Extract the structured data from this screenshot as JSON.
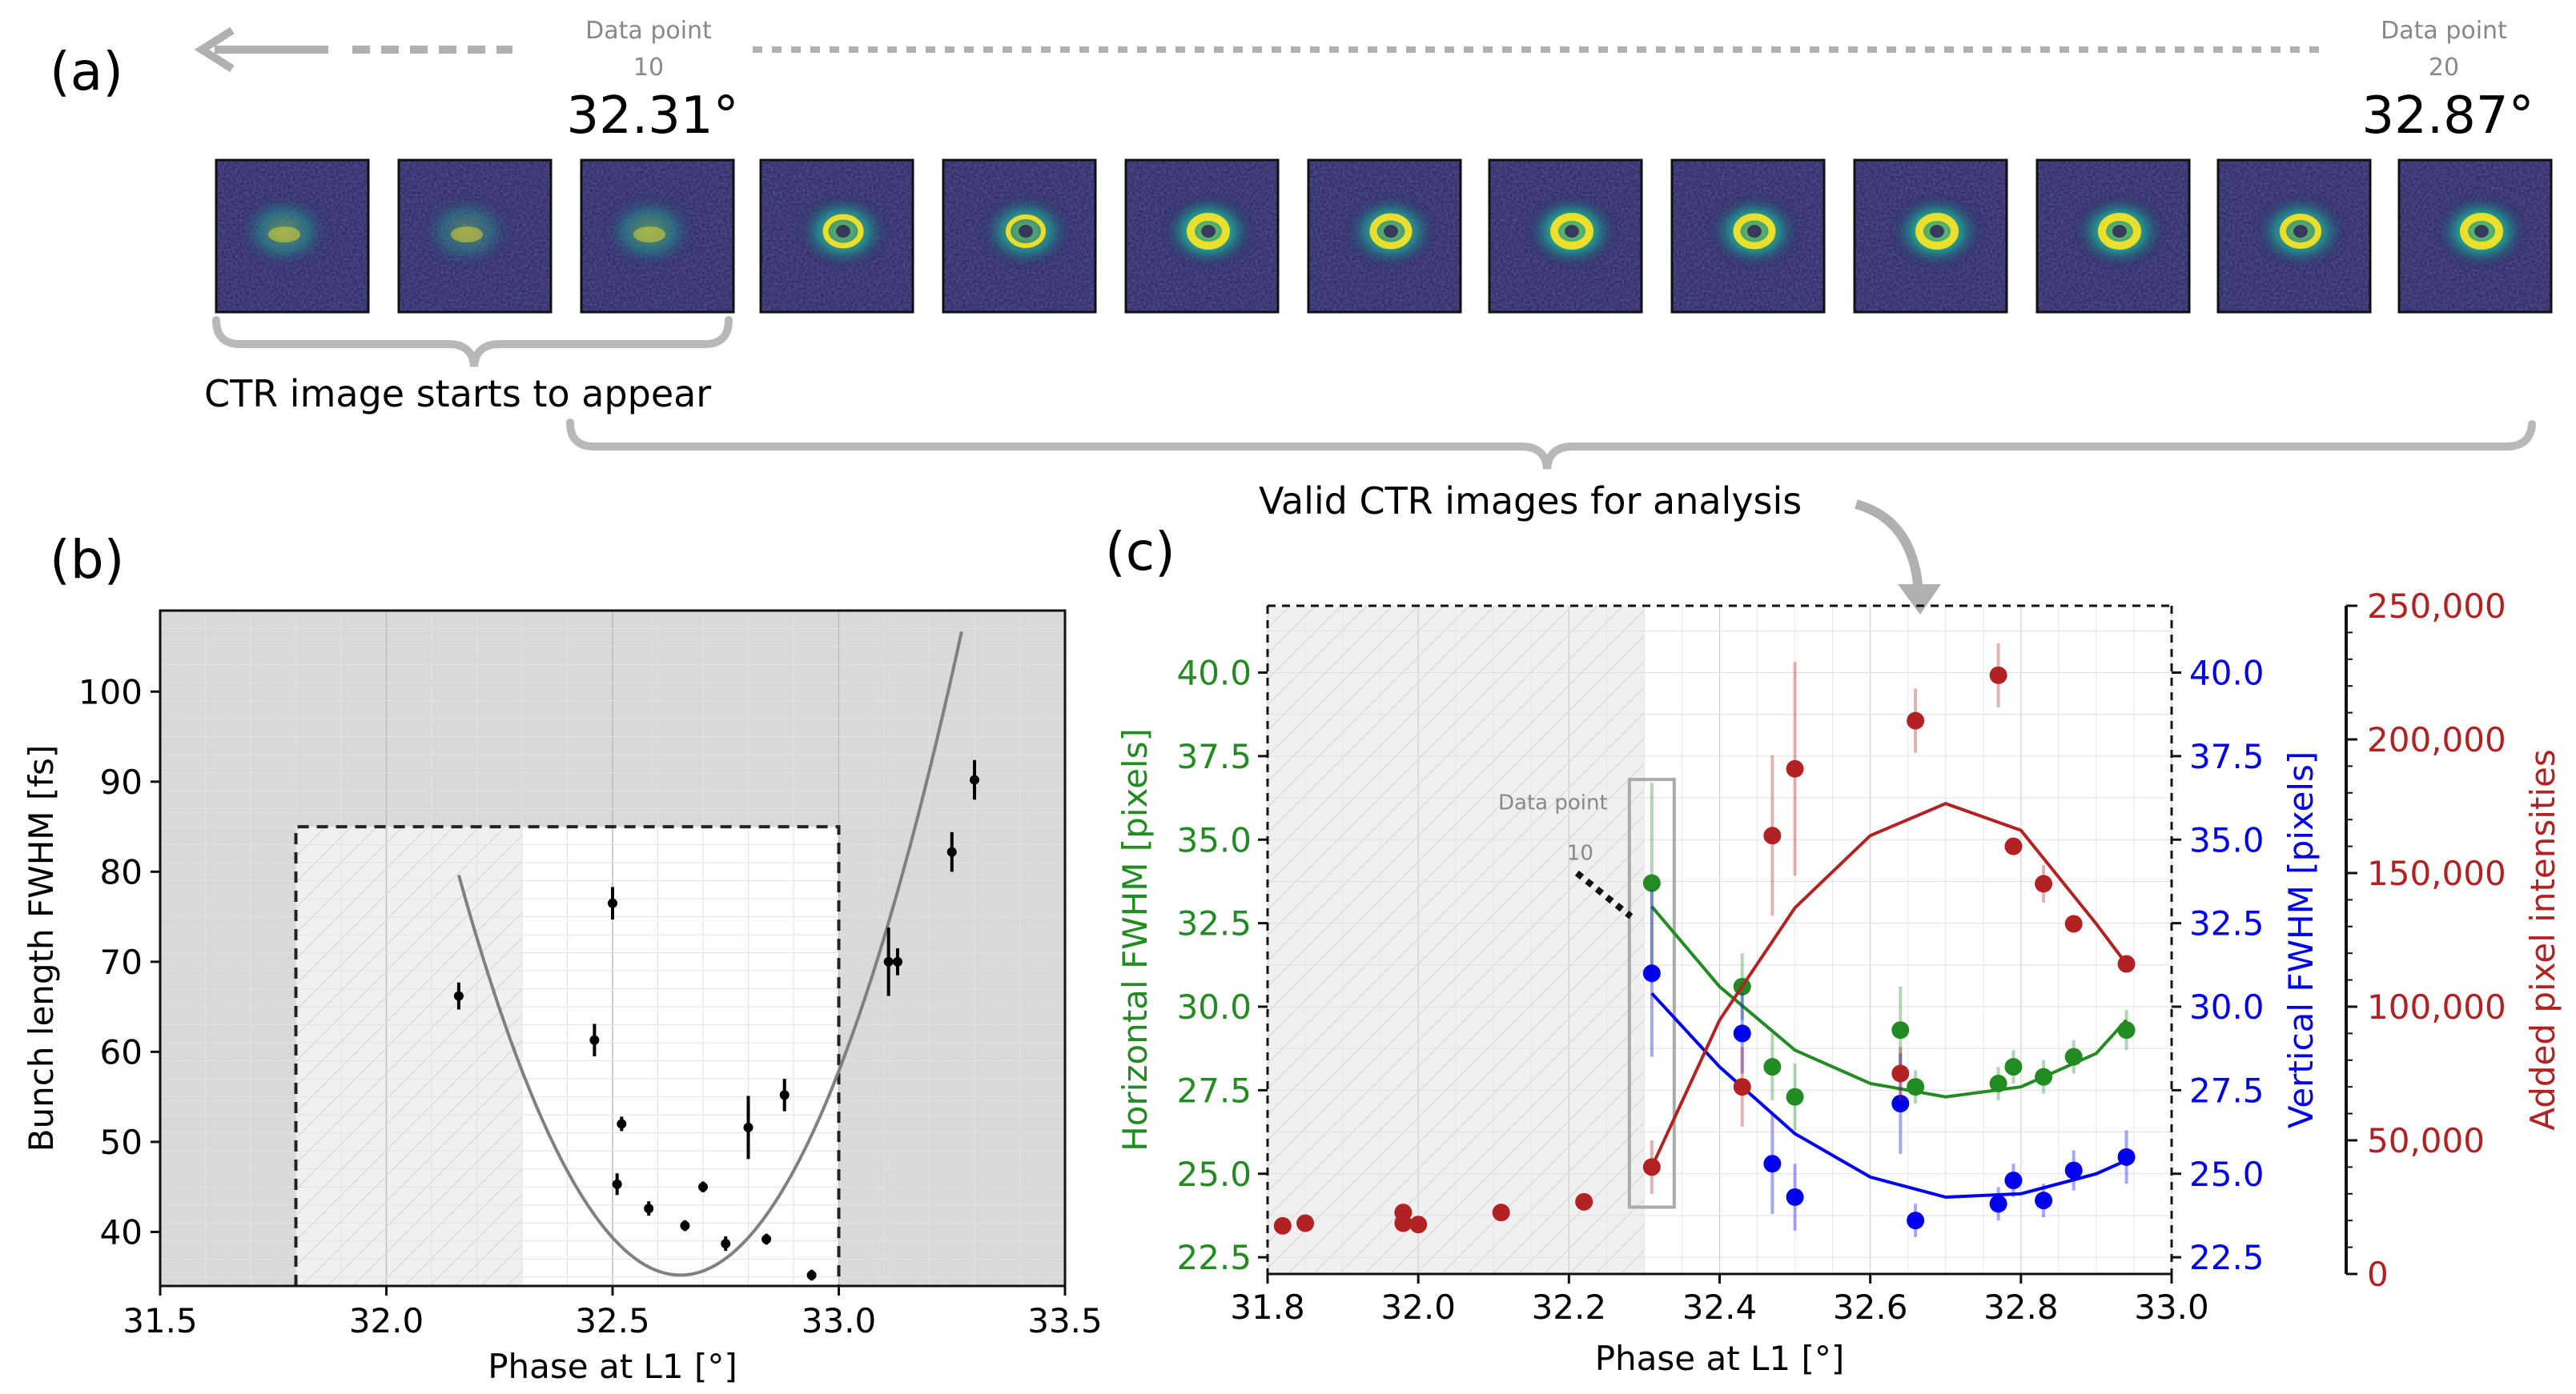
{
  "panel_a": {
    "label": "(a)",
    "dp10": {
      "label": "Data point",
      "num": "10",
      "angle": "32.31°"
    },
    "dp20": {
      "label": "Data point",
      "num": "20",
      "angle": "32.87°"
    },
    "brace_label_appear": "CTR image starts to appear",
    "brace_label_valid": "Valid CTR images for analysis",
    "thumbnails": [
      {
        "ring": 0.0,
        "bright": 0.55
      },
      {
        "ring": 0.0,
        "bright": 0.45
      },
      {
        "ring": 0.1,
        "bright": 0.55
      },
      {
        "ring": 0.7,
        "bright": 0.85
      },
      {
        "ring": 0.6,
        "bright": 0.8
      },
      {
        "ring": 1.0,
        "bright": 0.95
      },
      {
        "ring": 0.9,
        "bright": 0.85
      },
      {
        "ring": 1.0,
        "bright": 0.95
      },
      {
        "ring": 0.9,
        "bright": 0.9
      },
      {
        "ring": 1.0,
        "bright": 0.95
      },
      {
        "ring": 1.0,
        "bright": 0.92
      },
      {
        "ring": 0.8,
        "bright": 0.85
      },
      {
        "ring": 1.0,
        "bright": 0.95
      }
    ],
    "colors": {
      "bg": "#2b1b5e",
      "mid": "#21908d",
      "hi": "#fde725",
      "arrow": "#b0b0b0"
    }
  },
  "chart_data": [
    {
      "id": "b",
      "type": "scatter",
      "label": "(b)",
      "xlabel": "Phase at L1 [°]",
      "ylabel": "Bunch length FWHM [fs]",
      "xlim": [
        31.5,
        33.5
      ],
      "ylim": [
        34,
        109
      ],
      "xticks": [
        "31.5",
        "32.0",
        "32.5",
        "33.0",
        "33.5"
      ],
      "xtick_values": [
        31.5,
        32.0,
        32.5,
        33.0,
        33.5
      ],
      "yticks": [
        "40",
        "50",
        "60",
        "70",
        "80",
        "90",
        "100"
      ],
      "ytick_values": [
        40,
        50,
        60,
        70,
        80,
        90,
        100
      ],
      "shaded_regions": [
        {
          "x0": 31.5,
          "x1": 31.8,
          "color": "#d9d9d9"
        },
        {
          "x0": 33.0,
          "x1": 33.5,
          "color": "#d9d9d9"
        },
        {
          "x0": 31.8,
          "x1": 32.3,
          "color": "#f0f0f0"
        }
      ],
      "zoom_box": {
        "x0": 31.8,
        "x1": 33.0,
        "y0": 34,
        "y1": 85
      },
      "points": [
        {
          "x": 32.16,
          "y": 66.2,
          "err": 1.5
        },
        {
          "x": 32.46,
          "y": 61.3,
          "err": 1.8
        },
        {
          "x": 32.5,
          "y": 76.5,
          "err": 1.8
        },
        {
          "x": 32.51,
          "y": 45.3,
          "err": 1.2
        },
        {
          "x": 32.52,
          "y": 52.0,
          "err": 0.8
        },
        {
          "x": 32.58,
          "y": 42.6,
          "err": 0.8
        },
        {
          "x": 32.66,
          "y": 40.7,
          "err": 0.6
        },
        {
          "x": 32.7,
          "y": 45.0,
          "err": 0.6
        },
        {
          "x": 32.75,
          "y": 38.7,
          "err": 0.8
        },
        {
          "x": 32.8,
          "y": 51.6,
          "err": 3.5
        },
        {
          "x": 32.84,
          "y": 39.2,
          "err": 0.6
        },
        {
          "x": 32.88,
          "y": 55.2,
          "err": 1.8
        },
        {
          "x": 32.94,
          "y": 35.2,
          "err": 0.6
        },
        {
          "x": 33.11,
          "y": 70.0,
          "err": 3.8
        },
        {
          "x": 33.13,
          "y": 70.0,
          "err": 1.5
        },
        {
          "x": 33.25,
          "y": 82.2,
          "err": 2.2
        },
        {
          "x": 33.3,
          "y": 90.2,
          "err": 2.2
        }
      ],
      "fit_curve": {
        "vertex_x": 32.65,
        "vertex_y": 35.2,
        "a": 185,
        "x0": 32.16,
        "x1": 33.3
      },
      "colors": {
        "points": "#000000",
        "fit": "#808080"
      }
    },
    {
      "id": "c",
      "type": "scatter",
      "label": "(c)",
      "xlabel": "Phase at L1 [°]",
      "xlim": [
        31.8,
        33.0
      ],
      "xticks": [
        "31.8",
        "32.0",
        "32.2",
        "32.4",
        "32.6",
        "32.8",
        "33.0"
      ],
      "xtick_values": [
        31.8,
        32.0,
        32.2,
        32.4,
        32.6,
        32.8,
        33.0
      ],
      "shaded_region": {
        "x0": 31.8,
        "x1": 32.3,
        "color": "#f0f0f0"
      },
      "dp10_callout": {
        "label": "Data point",
        "num": "10"
      },
      "left_axis": {
        "label": "Horizontal FWHM [pixels]",
        "ylim": [
          22,
          42
        ],
        "ticks": [
          "22.5",
          "25.0",
          "27.5",
          "30.0",
          "32.5",
          "35.0",
          "37.5",
          "40.0"
        ],
        "tick_values": [
          22.5,
          25.0,
          27.5,
          30.0,
          32.5,
          35.0,
          37.5,
          40.0
        ],
        "color": "#228b22"
      },
      "right_axis_1": {
        "label": "Vertical FWHM [pixels]",
        "ylim": [
          22,
          42
        ],
        "ticks": [
          "22.5",
          "25.0",
          "27.5",
          "30.0",
          "32.5",
          "35.0",
          "37.5",
          "40.0"
        ],
        "tick_values": [
          22.5,
          25.0,
          27.5,
          30.0,
          32.5,
          35.0,
          37.5,
          40.0
        ],
        "color": "#0000ee"
      },
      "right_axis_2": {
        "label": "Added pixel intensities",
        "ylim": [
          0,
          250000
        ],
        "ticks": [
          "0",
          "50,000",
          "100,000",
          "150,000",
          "200,000",
          "250,000"
        ],
        "tick_values": [
          0,
          50000,
          100000,
          150000,
          200000,
          250000
        ],
        "color": "#b22222"
      },
      "series": [
        {
          "name": "Horizontal FWHM",
          "axis": "left",
          "color": "#228b22",
          "points": [
            {
              "x": 32.31,
              "y": 33.7,
              "err": 3.0
            },
            {
              "x": 32.43,
              "y": 30.6,
              "err": 1.0
            },
            {
              "x": 32.47,
              "y": 28.2,
              "err": 1.0
            },
            {
              "x": 32.5,
              "y": 27.3,
              "err": 1.0
            },
            {
              "x": 32.64,
              "y": 29.3,
              "err": 1.3
            },
            {
              "x": 32.66,
              "y": 27.6,
              "err": 0.5
            },
            {
              "x": 32.77,
              "y": 27.7,
              "err": 0.5
            },
            {
              "x": 32.79,
              "y": 28.2,
              "err": 0.5
            },
            {
              "x": 32.83,
              "y": 27.9,
              "err": 0.5
            },
            {
              "x": 32.87,
              "y": 28.5,
              "err": 0.5
            },
            {
              "x": 32.94,
              "y": 29.3,
              "err": 0.6
            }
          ],
          "fit": [
            [
              32.31,
              33.0
            ],
            [
              32.4,
              30.6
            ],
            [
              32.5,
              28.7
            ],
            [
              32.6,
              27.7
            ],
            [
              32.7,
              27.3
            ],
            [
              32.8,
              27.6
            ],
            [
              32.9,
              28.6
            ],
            [
              32.94,
              29.6
            ]
          ]
        },
        {
          "name": "Vertical FWHM",
          "axis": "right1",
          "color": "#0000ee",
          "points": [
            {
              "x": 32.31,
              "y": 31.0,
              "err": 2.5
            },
            {
              "x": 32.43,
              "y": 29.2,
              "err": 1.2
            },
            {
              "x": 32.47,
              "y": 25.3,
              "err": 1.5
            },
            {
              "x": 32.5,
              "y": 24.3,
              "err": 1.0
            },
            {
              "x": 32.64,
              "y": 27.1,
              "err": 1.5
            },
            {
              "x": 32.66,
              "y": 23.6,
              "err": 0.5
            },
            {
              "x": 32.77,
              "y": 24.1,
              "err": 0.5
            },
            {
              "x": 32.79,
              "y": 24.8,
              "err": 0.5
            },
            {
              "x": 32.83,
              "y": 24.2,
              "err": 0.5
            },
            {
              "x": 32.87,
              "y": 25.1,
              "err": 0.6
            },
            {
              "x": 32.94,
              "y": 25.5,
              "err": 0.8
            }
          ],
          "fit": [
            [
              32.31,
              30.4
            ],
            [
              32.4,
              28.2
            ],
            [
              32.5,
              26.2
            ],
            [
              32.6,
              24.9
            ],
            [
              32.7,
              24.3
            ],
            [
              32.8,
              24.4
            ],
            [
              32.9,
              25.0
            ],
            [
              32.94,
              25.4
            ]
          ]
        },
        {
          "name": "Added pixel intensities",
          "axis": "right2",
          "color": "#b22222",
          "points": [
            {
              "x": 31.82,
              "y": 18000,
              "err": 0
            },
            {
              "x": 31.85,
              "y": 19000,
              "err": 0
            },
            {
              "x": 31.98,
              "y": 23000,
              "err": 0
            },
            {
              "x": 31.98,
              "y": 19000,
              "err": 0
            },
            {
              "x": 32.0,
              "y": 18500,
              "err": 0
            },
            {
              "x": 32.11,
              "y": 23000,
              "err": 0
            },
            {
              "x": 32.22,
              "y": 27000,
              "err": 0
            },
            {
              "x": 32.31,
              "y": 40000,
              "err": 10000
            },
            {
              "x": 32.43,
              "y": 70000,
              "err": 15000
            },
            {
              "x": 32.47,
              "y": 164000,
              "err": 30000
            },
            {
              "x": 32.5,
              "y": 189000,
              "err": 40000
            },
            {
              "x": 32.64,
              "y": 75000,
              "err": 10000
            },
            {
              "x": 32.66,
              "y": 207000,
              "err": 12000
            },
            {
              "x": 32.77,
              "y": 224000,
              "err": 12000
            },
            {
              "x": 32.79,
              "y": 160000,
              "err": 3000
            },
            {
              "x": 32.83,
              "y": 146000,
              "err": 7000
            },
            {
              "x": 32.87,
              "y": 131000,
              "err": 3000
            },
            {
              "x": 32.94,
              "y": 116000,
              "err": 3000
            }
          ],
          "fit": [
            [
              32.31,
              40000
            ],
            [
              32.4,
              95000
            ],
            [
              32.5,
              137000
            ],
            [
              32.6,
              164000
            ],
            [
              32.7,
              176000
            ],
            [
              32.8,
              166000
            ],
            [
              32.9,
              131000
            ],
            [
              32.94,
              116000
            ]
          ]
        }
      ],
      "valid_box": {
        "x": 32.31,
        "y_low": 24.0,
        "y_high": 36.8
      }
    }
  ]
}
